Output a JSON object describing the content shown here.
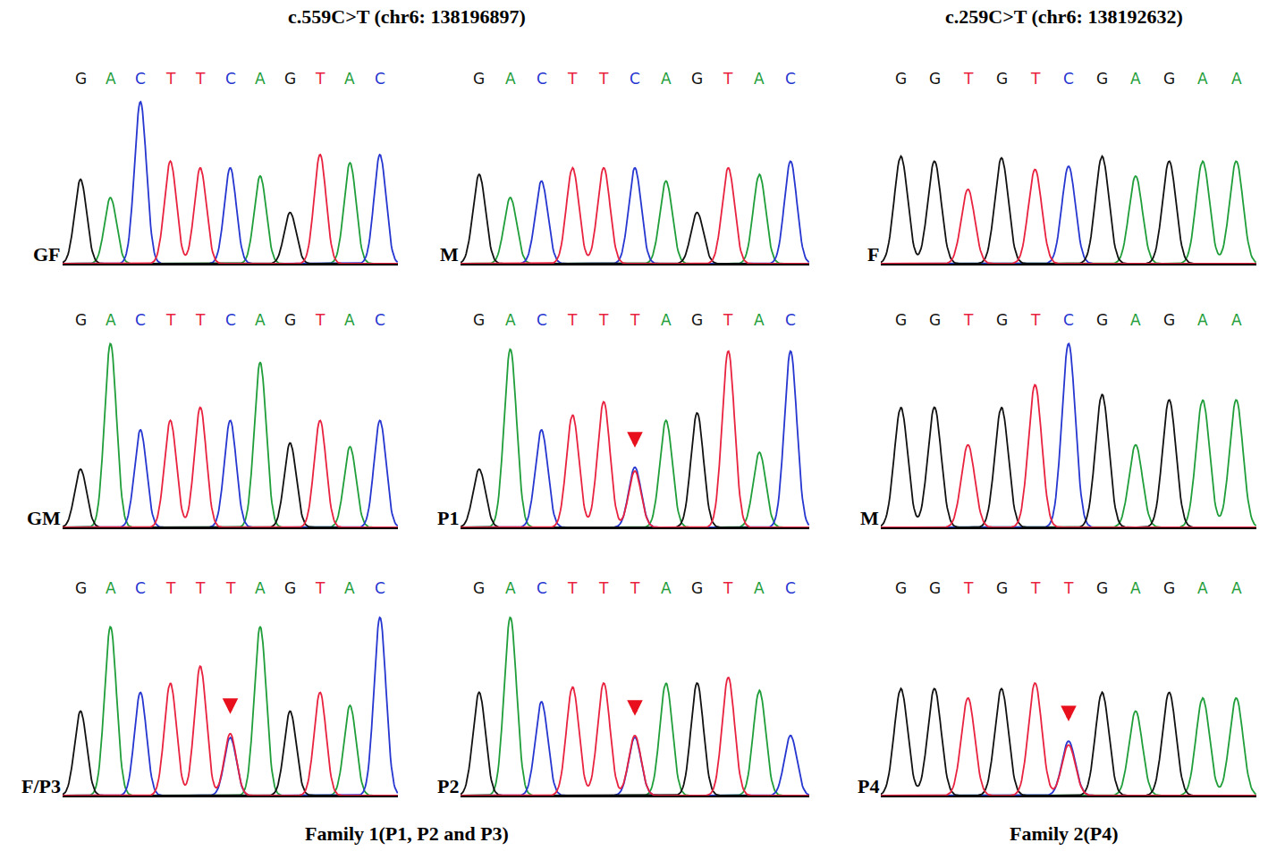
{
  "figure": {
    "titles": [
      "c.559C>T (chr6: 138196897)",
      "c.259C>T (chr6: 138192632)"
    ],
    "footers": [
      "Family 1(P1, P2 and P3)",
      "Family 2(P4)"
    ]
  },
  "chart_data": [
    {
      "type": "chromatogram",
      "label": "GF",
      "bases": [
        "G",
        "A",
        "C",
        "T",
        "T",
        "C",
        "A",
        "G",
        "T",
        "A",
        "C"
      ],
      "xlim": [
        -0.6,
        10.6
      ],
      "ylim": [
        0,
        100
      ],
      "tick_labels": false,
      "series": [
        {
          "name": "A",
          "color": "#1f9e3a",
          "values": [
            null,
            40,
            null,
            null,
            null,
            null,
            53,
            null,
            null,
            61,
            null
          ]
        },
        {
          "name": "C",
          "color": "#2636d0",
          "values": [
            null,
            null,
            98,
            null,
            null,
            58,
            null,
            null,
            null,
            null,
            66
          ]
        },
        {
          "name": "G",
          "color": "#111111",
          "values": [
            51,
            null,
            null,
            null,
            null,
            null,
            null,
            31,
            null,
            null,
            null
          ]
        },
        {
          "name": "T",
          "color": "#e8223f",
          "values": [
            null,
            null,
            null,
            62,
            58,
            null,
            null,
            null,
            66,
            null,
            null
          ]
        }
      ]
    },
    {
      "type": "chromatogram",
      "label": "M",
      "bases": [
        "G",
        "A",
        "C",
        "T",
        "T",
        "C",
        "A",
        "G",
        "T",
        "A",
        "C"
      ],
      "xlim": [
        -0.6,
        10.6
      ],
      "ylim": [
        0,
        100
      ],
      "tick_labels": false,
      "series": [
        {
          "name": "A",
          "color": "#1f9e3a",
          "values": [
            null,
            40,
            null,
            null,
            null,
            null,
            50,
            null,
            null,
            54,
            null
          ]
        },
        {
          "name": "C",
          "color": "#2636d0",
          "values": [
            null,
            null,
            50,
            null,
            null,
            58,
            null,
            null,
            null,
            null,
            62
          ]
        },
        {
          "name": "G",
          "color": "#111111",
          "values": [
            54,
            null,
            null,
            null,
            null,
            null,
            null,
            31,
            null,
            null,
            null
          ]
        },
        {
          "name": "T",
          "color": "#e8223f",
          "values": [
            null,
            null,
            null,
            58,
            58,
            null,
            null,
            null,
            58,
            null,
            null
          ]
        }
      ]
    },
    {
      "type": "chromatogram",
      "label": "F",
      "bases": [
        "G",
        "G",
        "T",
        "G",
        "T",
        "C",
        "G",
        "A",
        "G",
        "A",
        "A"
      ],
      "xlim": [
        -0.6,
        10.6
      ],
      "ylim": [
        0,
        100
      ],
      "tick_labels": false,
      "series": [
        {
          "name": "A",
          "color": "#1f9e3a",
          "values": [
            null,
            null,
            null,
            null,
            null,
            null,
            null,
            53,
            null,
            62,
            62
          ]
        },
        {
          "name": "C",
          "color": "#2636d0",
          "values": [
            null,
            null,
            null,
            null,
            null,
            59,
            null,
            null,
            null,
            null,
            null
          ]
        },
        {
          "name": "G",
          "color": "#111111",
          "values": [
            65,
            62,
            null,
            64,
            null,
            null,
            65,
            null,
            62,
            null,
            null
          ]
        },
        {
          "name": "T",
          "color": "#e8223f",
          "values": [
            null,
            null,
            45,
            null,
            57,
            null,
            null,
            null,
            null,
            null,
            null
          ]
        }
      ]
    },
    {
      "type": "chromatogram",
      "label": "GM",
      "bases": [
        "G",
        "A",
        "C",
        "T",
        "T",
        "C",
        "A",
        "G",
        "T",
        "A",
        "C"
      ],
      "xlim": [
        -0.6,
        10.6
      ],
      "ylim": [
        0,
        100
      ],
      "tick_labels": false,
      "series": [
        {
          "name": "A",
          "color": "#1f9e3a",
          "values": [
            null,
            98,
            null,
            null,
            null,
            null,
            88,
            null,
            null,
            43,
            null
          ]
        },
        {
          "name": "C",
          "color": "#2636d0",
          "values": [
            null,
            null,
            52,
            null,
            null,
            57,
            null,
            null,
            null,
            null,
            57
          ]
        },
        {
          "name": "G",
          "color": "#111111",
          "values": [
            31,
            null,
            null,
            null,
            null,
            null,
            null,
            45,
            null,
            null,
            null
          ]
        },
        {
          "name": "T",
          "color": "#e8223f",
          "values": [
            null,
            null,
            null,
            57,
            64,
            null,
            null,
            null,
            57,
            null,
            null
          ]
        }
      ]
    },
    {
      "type": "chromatogram",
      "label": "P1",
      "bases": [
        "G",
        "A",
        "C",
        "T",
        "T",
        "T",
        "A",
        "G",
        "T",
        "A",
        "C"
      ],
      "xlim": [
        -0.6,
        10.6
      ],
      "ylim": [
        0,
        100
      ],
      "tick_labels": false,
      "marked_position": 5,
      "series": [
        {
          "name": "A",
          "color": "#1f9e3a",
          "values": [
            null,
            95,
            null,
            null,
            null,
            null,
            57,
            null,
            null,
            40,
            null
          ]
        },
        {
          "name": "C",
          "color": "#2636d0",
          "values": [
            null,
            null,
            52,
            null,
            null,
            32,
            null,
            null,
            null,
            null,
            94
          ]
        },
        {
          "name": "G",
          "color": "#111111",
          "values": [
            31,
            null,
            null,
            null,
            null,
            null,
            null,
            61,
            null,
            null,
            null
          ]
        },
        {
          "name": "T",
          "color": "#e8223f",
          "values": [
            null,
            null,
            null,
            60,
            67,
            30,
            null,
            null,
            94,
            null,
            null
          ]
        }
      ]
    },
    {
      "type": "chromatogram",
      "label": "M",
      "bases": [
        "G",
        "G",
        "T",
        "G",
        "T",
        "C",
        "G",
        "A",
        "G",
        "A",
        "A"
      ],
      "xlim": [
        -0.6,
        10.6
      ],
      "ylim": [
        0,
        100
      ],
      "tick_labels": false,
      "series": [
        {
          "name": "A",
          "color": "#1f9e3a",
          "values": [
            null,
            null,
            null,
            null,
            null,
            null,
            null,
            44,
            null,
            68,
            68
          ]
        },
        {
          "name": "C",
          "color": "#2636d0",
          "values": [
            null,
            null,
            null,
            null,
            null,
            98,
            null,
            null,
            null,
            null,
            null
          ]
        },
        {
          "name": "G",
          "color": "#111111",
          "values": [
            64,
            64,
            null,
            64,
            null,
            null,
            71,
            null,
            68,
            null,
            null
          ]
        },
        {
          "name": "T",
          "color": "#e8223f",
          "values": [
            null,
            null,
            44,
            null,
            76,
            null,
            null,
            null,
            null,
            null,
            null
          ]
        }
      ]
    },
    {
      "type": "chromatogram",
      "label": "F/P3",
      "bases": [
        "G",
        "A",
        "C",
        "T",
        "T",
        "T",
        "A",
        "G",
        "T",
        "A",
        "C"
      ],
      "xlim": [
        -0.6,
        10.6
      ],
      "ylim": [
        0,
        100
      ],
      "tick_labels": false,
      "marked_position": 5,
      "series": [
        {
          "name": "A",
          "color": "#1f9e3a",
          "values": [
            null,
            90,
            null,
            null,
            null,
            null,
            90,
            null,
            null,
            48,
            null
          ]
        },
        {
          "name": "C",
          "color": "#2636d0",
          "values": [
            null,
            null,
            55,
            null,
            null,
            31,
            null,
            null,
            null,
            null,
            95
          ]
        },
        {
          "name": "G",
          "color": "#111111",
          "values": [
            45,
            null,
            null,
            null,
            null,
            null,
            null,
            45,
            null,
            null,
            null
          ]
        },
        {
          "name": "T",
          "color": "#e8223f",
          "values": [
            null,
            null,
            null,
            60,
            69,
            33,
            null,
            null,
            55,
            null,
            null
          ]
        }
      ]
    },
    {
      "type": "chromatogram",
      "label": "P2",
      "bases": [
        "G",
        "A",
        "C",
        "T",
        "T",
        "T",
        "A",
        "G",
        "T",
        "A",
        "C"
      ],
      "xlim": [
        -0.6,
        10.6
      ],
      "ylim": [
        0,
        100
      ],
      "tick_labels": false,
      "marked_position": 5,
      "series": [
        {
          "name": "A",
          "color": "#1f9e3a",
          "values": [
            null,
            95,
            null,
            null,
            null,
            null,
            60,
            null,
            null,
            56,
            null
          ]
        },
        {
          "name": "C",
          "color": "#2636d0",
          "values": [
            null,
            null,
            50,
            null,
            null,
            31,
            null,
            null,
            null,
            null,
            32
          ]
        },
        {
          "name": "G",
          "color": "#111111",
          "values": [
            55,
            null,
            null,
            null,
            null,
            null,
            null,
            60,
            null,
            null,
            null
          ]
        },
        {
          "name": "T",
          "color": "#e8223f",
          "values": [
            null,
            null,
            null,
            58,
            60,
            32,
            null,
            null,
            63,
            null,
            null
          ]
        }
      ]
    },
    {
      "type": "chromatogram",
      "label": "P4",
      "bases": [
        "G",
        "G",
        "T",
        "G",
        "T",
        "T",
        "G",
        "A",
        "G",
        "A",
        "A"
      ],
      "xlim": [
        -0.6,
        10.6
      ],
      "ylim": [
        0,
        100
      ],
      "tick_labels": false,
      "marked_position": 5,
      "series": [
        {
          "name": "A",
          "color": "#1f9e3a",
          "values": [
            null,
            null,
            null,
            null,
            null,
            null,
            null,
            45,
            null,
            52,
            52
          ]
        },
        {
          "name": "C",
          "color": "#2636d0",
          "values": [
            null,
            null,
            null,
            null,
            null,
            29,
            null,
            null,
            null,
            null,
            null
          ]
        },
        {
          "name": "G",
          "color": "#111111",
          "values": [
            57,
            57,
            null,
            57,
            null,
            null,
            55,
            null,
            55,
            null,
            null
          ]
        },
        {
          "name": "T",
          "color": "#e8223f",
          "values": [
            null,
            null,
            52,
            null,
            60,
            27,
            null,
            null,
            null,
            null,
            null
          ]
        }
      ]
    }
  ]
}
